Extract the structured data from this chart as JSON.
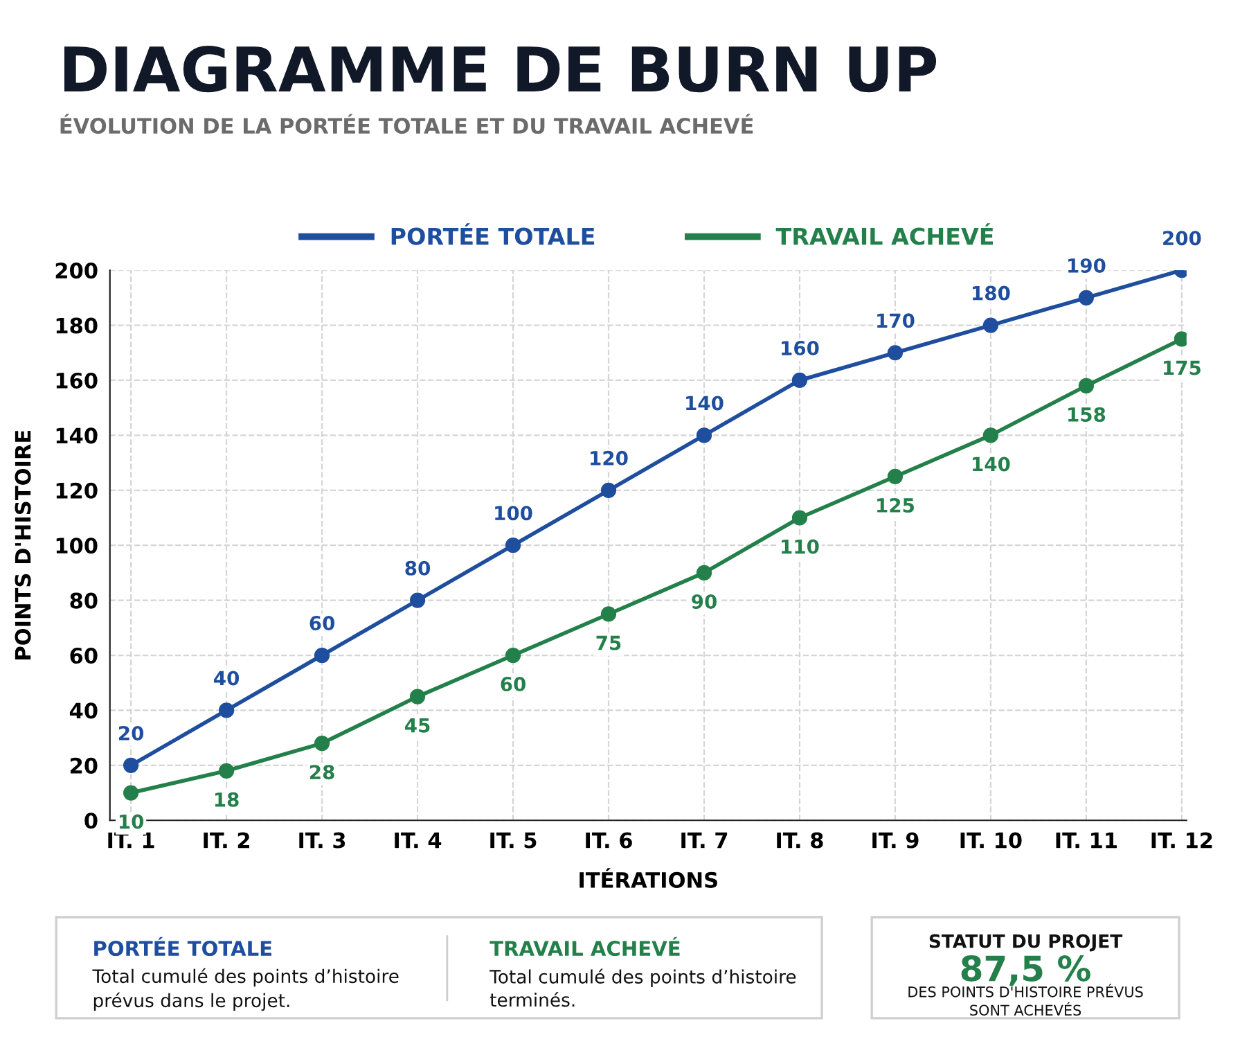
{
  "chart_data": {
    "type": "line",
    "title": "DIAGRAMME DE BURN UP",
    "subtitle": "ÉVOLUTION DE LA PORTÉE TOTALE ET DU TRAVAIL ACHEVÉ",
    "xlabel": "ITÉRATIONS",
    "ylabel": "POINTS D'HISTOIRE",
    "categories": [
      "IT. 1",
      "IT. 2",
      "IT. 3",
      "IT. 4",
      "IT. 5",
      "IT. 6",
      "IT. 7",
      "IT. 8",
      "IT. 9",
      "IT. 10",
      "IT. 11",
      "IT. 12"
    ],
    "series": [
      {
        "name": "PORTÉE TOTALE",
        "color": "#1f4e9e",
        "values": [
          20,
          40,
          60,
          80,
          100,
          120,
          140,
          160,
          170,
          180,
          190,
          200
        ]
      },
      {
        "name": "TRAVAIL ACHEVÉ",
        "color": "#24804a",
        "values": [
          10,
          18,
          28,
          45,
          60,
          75,
          90,
          110,
          125,
          140,
          158,
          175
        ]
      }
    ],
    "ylim": [
      0,
      200
    ],
    "yticks": [
      0,
      20,
      40,
      60,
      80,
      100,
      120,
      140,
      160,
      180,
      200
    ],
    "grid": true,
    "legend": "top",
    "marker": "circle",
    "line_style": "solid",
    "data_labels": true,
    "annotations": [
      "PORTÉE TOTALE",
      "Total cumulé des points d’histoire\nprévus dans le projet.",
      "TRAVAIL ACHEVÉ",
      "Total cumulé des points d’histoire\nterminés.",
      "STATUT DU PROJET",
      "87,5 %",
      "DES POINTS D'HISTOIRE PRÉVUS\nSONT ACHEVÉS"
    ]
  }
}
